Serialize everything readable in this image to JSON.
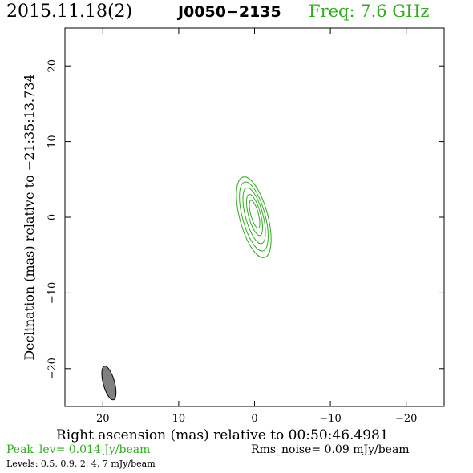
{
  "header": {
    "date": "2015.11.18(2)",
    "source": "J0050−2135",
    "freq": "Freq: 7.6 GHz"
  },
  "footer": {
    "peak": "Peak_lev=  0.014 Jy/beam",
    "rms": "Rms_noise= 0.09 mJy/beam",
    "levels": "Levels: 0.5, 0.9,    2,    4,    7 mJy/beam"
  },
  "colors": {
    "accent": "#33aa22",
    "beam_fill": "#808080",
    "axes": "#000000"
  },
  "chart_data": {
    "type": "contour",
    "xlabel": "Right ascension (mas) relative to 00:50:46.4981",
    "ylabel": "Declination (mas) relative to −21:35:13.734",
    "xlim": [
      25,
      -25
    ],
    "ylim": [
      -25,
      25
    ],
    "xticks": [
      20,
      10,
      0,
      -10,
      -20
    ],
    "xtick_labels": [
      "20",
      "10",
      "0",
      "−10",
      "−20"
    ],
    "yticks": [
      20,
      10,
      0,
      -10,
      -20
    ],
    "ytick_labels": [
      "20",
      "10",
      "0",
      "−10",
      "−20"
    ],
    "contour_levels_mjy": [
      0.5,
      0.9,
      2,
      4,
      7
    ],
    "contours": [
      {
        "level": 0.5,
        "center": [
          0.1,
          0.0
        ],
        "semi_major": 5.5,
        "semi_minor": 1.85,
        "pa_deg": -15
      },
      {
        "level": 0.9,
        "center": [
          0.1,
          0.1
        ],
        "semi_major": 4.7,
        "semi_minor": 1.5,
        "pa_deg": -15
      },
      {
        "level": 2,
        "center": [
          0.05,
          0.2
        ],
        "semi_major": 3.8,
        "semi_minor": 1.15,
        "pa_deg": -15
      },
      {
        "level": 4,
        "center": [
          0.0,
          0.3
        ],
        "semi_major": 2.8,
        "semi_minor": 0.8,
        "pa_deg": -15
      },
      {
        "level": 7,
        "center": [
          0.0,
          0.4
        ],
        "semi_major": 1.9,
        "semi_minor": 0.5,
        "pa_deg": -15
      }
    ],
    "beam": {
      "center": [
        19.2,
        -21.9
      ],
      "semi_major": 2.3,
      "semi_minor": 0.75,
      "pa_deg": -15
    }
  }
}
